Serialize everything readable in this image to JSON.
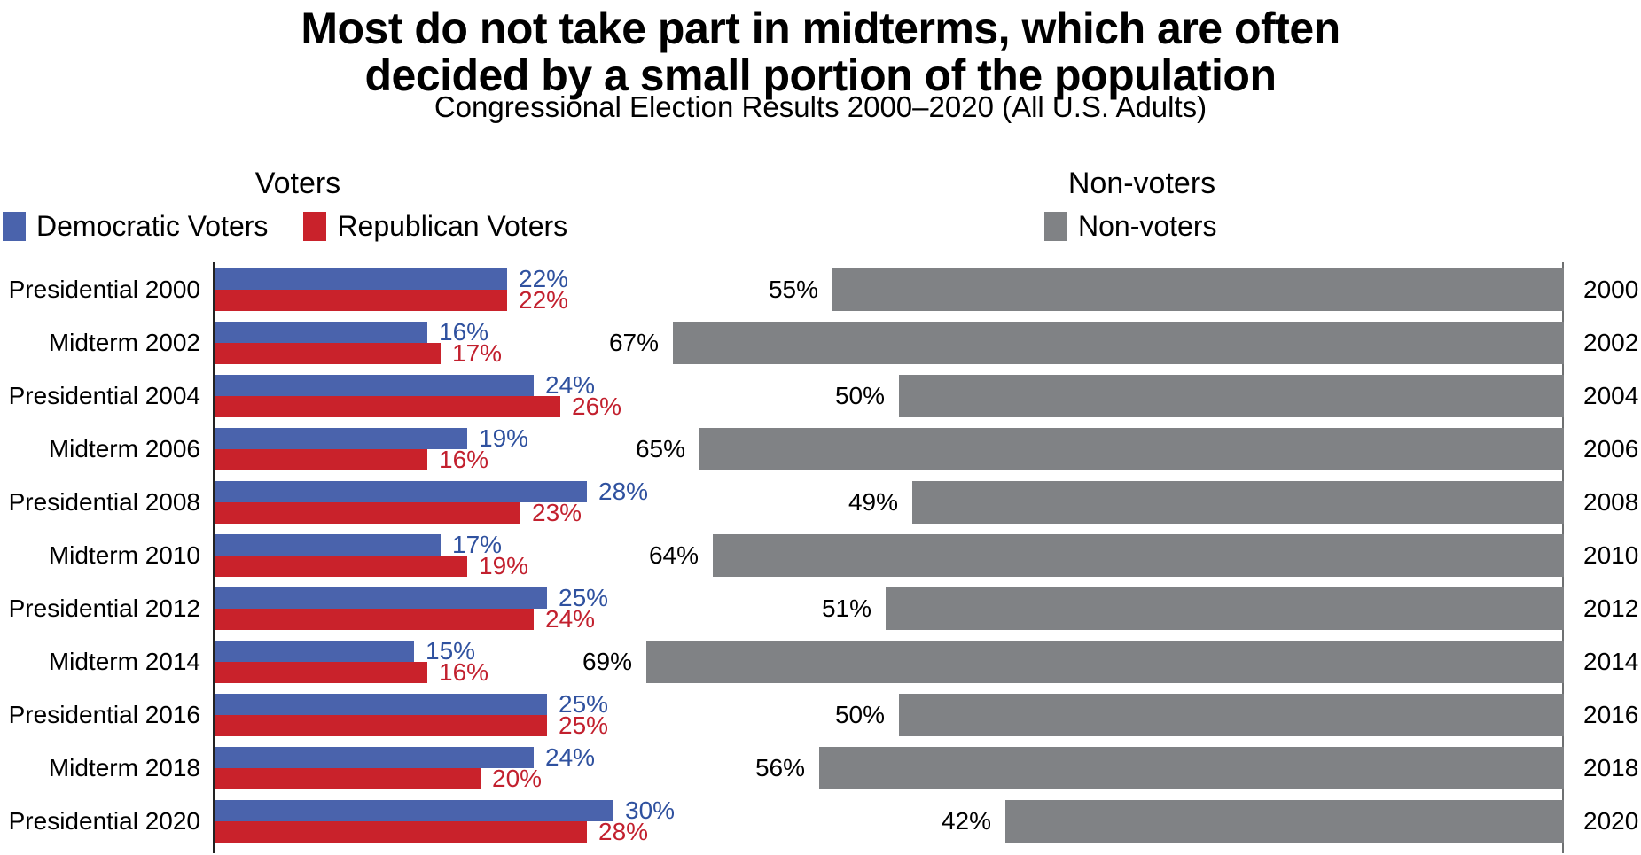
{
  "title": "Most do not take part in midterms, which are often decided by a small portion of the population",
  "subtitle": "Congressional Election Results 2000–2020 (All U.S. Adults)",
  "colors": {
    "democratic_bar": "#4A63AC",
    "republican_bar": "#C9222B",
    "nonvoter_bar": "#808285",
    "democratic_value_text": "#2F519F",
    "republican_value_text": "#C2202E",
    "left_axis": "#222222",
    "right_axis": "#6E7071"
  },
  "left_section": {
    "header": "Voters",
    "legend": [
      {
        "label": "Democratic Voters",
        "color": "#4A63AC"
      },
      {
        "label": "Republican Voters",
        "color": "#C9222B"
      }
    ]
  },
  "right_section": {
    "header": "Non-voters",
    "legend": [
      {
        "label": "Non-voters",
        "color": "#808285"
      }
    ]
  },
  "chart_data": {
    "type": "bar",
    "orientation": "horizontal",
    "value_unit": "percent",
    "title": "Most do not take part in midterms, which are often decided by a small portion of the population",
    "subtitle": "Congressional Election Results 2000–2020 (All U.S. Adults)",
    "legend_position": "top",
    "grid": false,
    "xlim_voters": [
      0,
      30
    ],
    "xlim_nonvoters": [
      0,
      69
    ],
    "categories": [
      "Presidential 2000",
      "Midterm 2002",
      "Presidential 2004",
      "Midterm 2006",
      "Presidential 2008",
      "Midterm 2010",
      "Presidential 2012",
      "Midterm 2014",
      "Presidential 2016",
      "Midterm 2018",
      "Presidential 2020"
    ],
    "years": [
      "2000",
      "2002",
      "2004",
      "2006",
      "2008",
      "2010",
      "2012",
      "2014",
      "2016",
      "2018",
      "2020"
    ],
    "series": [
      {
        "name": "Democratic Voters",
        "color": "#4A63AC",
        "values": [
          22,
          16,
          24,
          19,
          28,
          17,
          25,
          15,
          25,
          24,
          30
        ]
      },
      {
        "name": "Republican Voters",
        "color": "#C9222B",
        "values": [
          22,
          17,
          26,
          16,
          23,
          19,
          24,
          16,
          25,
          20,
          28
        ]
      },
      {
        "name": "Non-voters",
        "color": "#808285",
        "values": [
          55,
          67,
          50,
          65,
          49,
          64,
          51,
          69,
          50,
          56,
          42
        ]
      }
    ],
    "rows": [
      {
        "category": "Presidential 2000",
        "dem": 22,
        "rep": 22,
        "non": 55,
        "dem_label": "22%",
        "rep_label": "22%",
        "non_label": "55%",
        "year": "2000"
      },
      {
        "category": "Midterm 2002",
        "dem": 16,
        "rep": 17,
        "non": 67,
        "dem_label": "16%",
        "rep_label": "17%",
        "non_label": "67%",
        "year": "2002"
      },
      {
        "category": "Presidential 2004",
        "dem": 24,
        "rep": 26,
        "non": 50,
        "dem_label": "24%",
        "rep_label": "26%",
        "non_label": "50%",
        "year": "2004"
      },
      {
        "category": "Midterm 2006",
        "dem": 19,
        "rep": 16,
        "non": 65,
        "dem_label": "19%",
        "rep_label": "16%",
        "non_label": "65%",
        "year": "2006"
      },
      {
        "category": "Presidential 2008",
        "dem": 28,
        "rep": 23,
        "non": 49,
        "dem_label": "28%",
        "rep_label": "23%",
        "non_label": "49%",
        "year": "2008"
      },
      {
        "category": "Midterm 2010",
        "dem": 17,
        "rep": 19,
        "non": 64,
        "dem_label": "17%",
        "rep_label": "19%",
        "non_label": "64%",
        "year": "2010"
      },
      {
        "category": "Presidential 2012",
        "dem": 25,
        "rep": 24,
        "non": 51,
        "dem_label": "25%",
        "rep_label": "24%",
        "non_label": "51%",
        "year": "2012"
      },
      {
        "category": "Midterm 2014",
        "dem": 15,
        "rep": 16,
        "non": 69,
        "dem_label": "15%",
        "rep_label": "16%",
        "non_label": "69%",
        "year": "2014"
      },
      {
        "category": "Presidential 2016",
        "dem": 25,
        "rep": 25,
        "non": 50,
        "dem_label": "25%",
        "rep_label": "25%",
        "non_label": "50%",
        "year": "2016"
      },
      {
        "category": "Midterm 2018",
        "dem": 24,
        "rep": 20,
        "non": 56,
        "dem_label": "24%",
        "rep_label": "20%",
        "non_label": "56%",
        "year": "2018"
      },
      {
        "category": "Presidential 2020",
        "dem": 30,
        "rep": 28,
        "non": 42,
        "dem_label": "30%",
        "rep_label": "28%",
        "non_label": "42%",
        "year": "2020"
      }
    ]
  }
}
